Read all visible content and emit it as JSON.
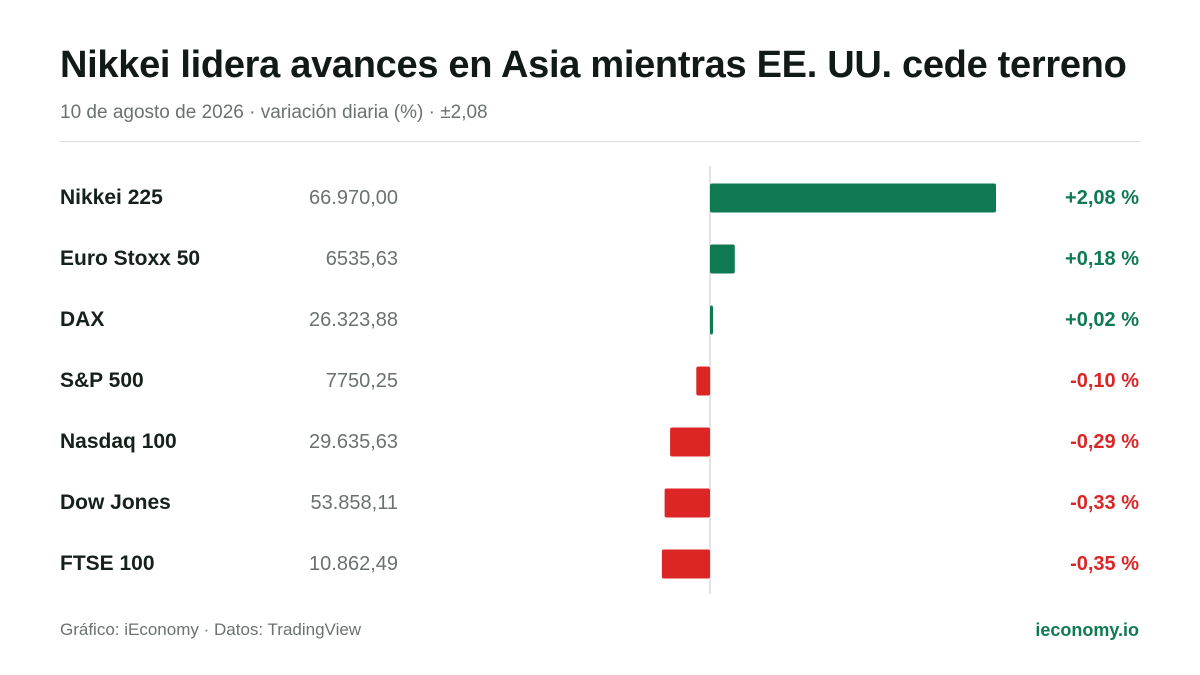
{
  "title": "Nikkei lidera avances en Asia mientras EE. UU. cede terreno",
  "subtitle": "10 de agosto de 2026 · variación diaria (%) · ±2,08",
  "footer": {
    "source": "Gráfico: iEconomy · Datos: TradingView",
    "brand": "ieconomy.io"
  },
  "colors": {
    "positive": "#0f7a52",
    "negative": "#dc2626",
    "axis": "#d9dcda"
  },
  "chart_data": {
    "type": "bar",
    "orientation": "horizontal",
    "title": "Nikkei lidera avances en Asia mientras EE. UU. cede terreno",
    "categories": [
      "Nikkei 225",
      "Euro Stoxx 50",
      "DAX",
      "S&P 500",
      "Nasdaq 100",
      "Dow Jones",
      "FTSE 100"
    ],
    "index_values": [
      "66.970,00",
      "6535,63",
      "26.323,88",
      "7750,25",
      "29.635,63",
      "53.858,11",
      "10.862,49"
    ],
    "values": [
      2.08,
      0.18,
      0.02,
      -0.1,
      -0.29,
      -0.33,
      -0.35
    ],
    "value_labels": [
      "+2,08 %",
      "+0,18 %",
      "+0,02 %",
      "-0,10 %",
      "-0,29 %",
      "-0,33 %",
      "-0,35 %"
    ],
    "xlim": [
      -2.08,
      2.08
    ],
    "grid": false,
    "legend": "none"
  }
}
